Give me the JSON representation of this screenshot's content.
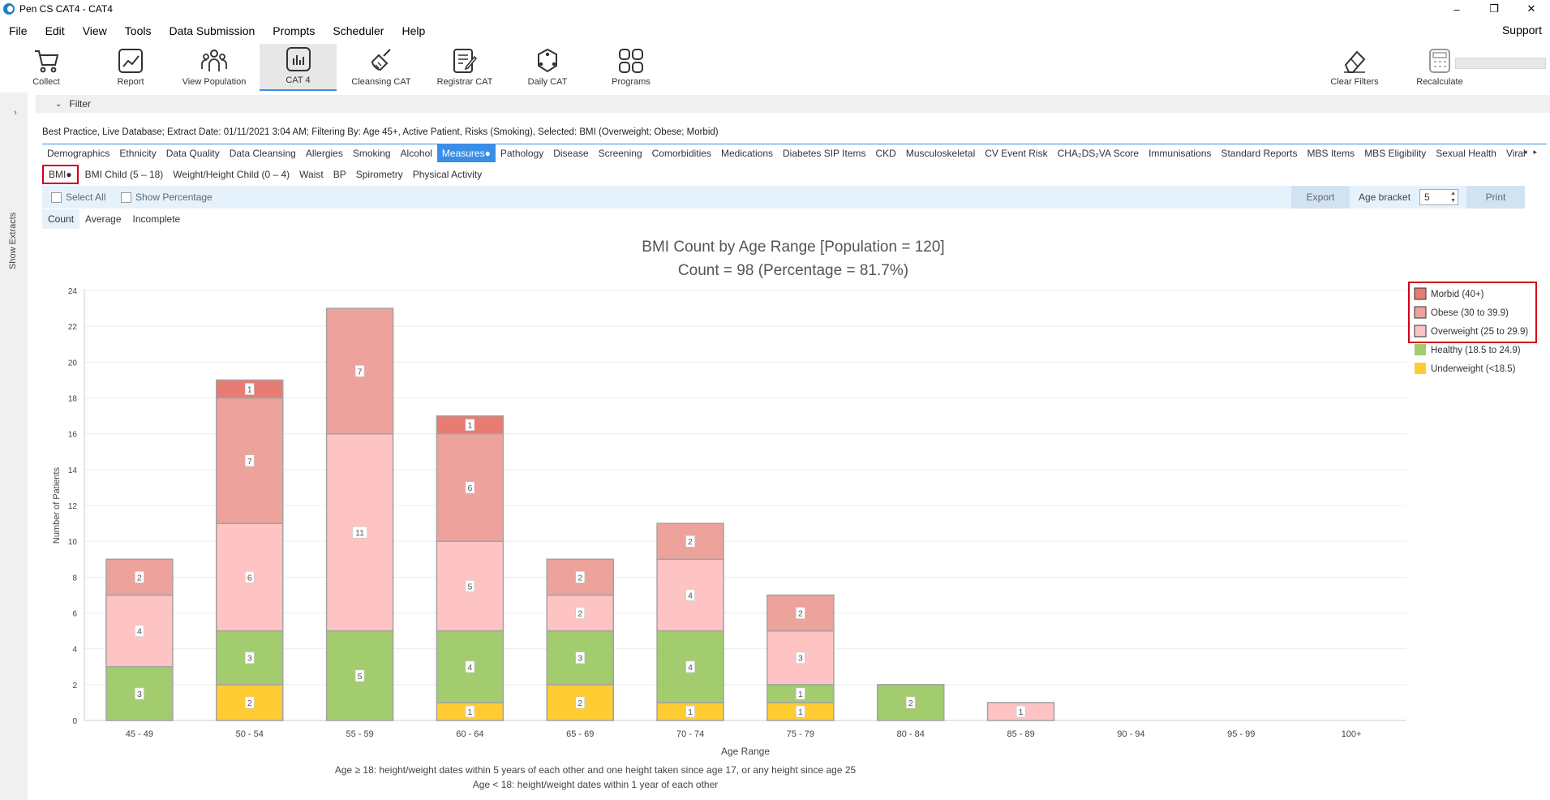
{
  "window": {
    "title": "Pen CS CAT4 - CAT4",
    "controls": [
      "–",
      "❐",
      "✕"
    ]
  },
  "menu": {
    "items": [
      "File",
      "Edit",
      "View",
      "Tools",
      "Data Submission",
      "Prompts",
      "Scheduler",
      "Help"
    ],
    "support": "Support"
  },
  "toolbar": {
    "items": [
      "Collect",
      "Report",
      "View Population",
      "CAT 4",
      "Cleansing CAT",
      "Registrar CAT",
      "Daily CAT",
      "Programs"
    ],
    "right_items": [
      "Clear Filters",
      "Recalculate"
    ],
    "active": "CAT 4"
  },
  "sidebar": {
    "label": "Show Extracts",
    "arrow": "›"
  },
  "filter": {
    "label": "Filter",
    "chevron": "⌵"
  },
  "info_line": "Best Practice, Live Database; Extract Date: 01/11/2021 3:04 AM; Filtering By: Age 45+, Active Patient, Risks (Smoking), Selected: BMI (Overweight; Obese; Morbid)",
  "tabs": [
    "Demographics",
    "Ethnicity",
    "Data Quality",
    "Data Cleansing",
    "Allergies",
    "Smoking",
    "Alcohol",
    "Measures●",
    "Pathology",
    "Disease",
    "Screening",
    "Comorbidities",
    "Medications",
    "Diabetes SIP Items",
    "CKD",
    "Musculoskeletal",
    "CV Event Risk",
    "CHA₂DS₂VA Score",
    "Immunisations",
    "Standard Reports",
    "MBS Items",
    "MBS Eligibility",
    "Sexual Health",
    "Viral H"
  ],
  "active_tab": "Measures●",
  "tab_arrows": "◂▸",
  "subtabs": [
    "BMI●",
    "BMI Child (5 – 18)",
    "Weight/Height Child (0 – 4)",
    "Waist",
    "BP",
    "Spirometry",
    "Physical Activity"
  ],
  "options": {
    "select_all": "Select All",
    "show_percentage": "Show Percentage",
    "export": "Export",
    "age_bracket_label": "Age bracket",
    "age_bracket_value": "5",
    "print": "Print"
  },
  "modes": [
    "Count",
    "Average",
    "Incomplete"
  ],
  "active_mode": "Count",
  "chart_data": {
    "type": "bar",
    "stacked": true,
    "title": "BMI Count by Age Range [Population = 120]",
    "subtitle": "Count = 98  (Percentage = 81.7%)",
    "xlabel": "Age Range",
    "ylabel": "Number of Patients",
    "ylim": [
      0,
      24
    ],
    "yticks": [
      0,
      2,
      4,
      6,
      8,
      10,
      12,
      14,
      16,
      18,
      20,
      22,
      24
    ],
    "grid": true,
    "legend_position": "top-right",
    "categories": [
      "45 - 49",
      "50 - 54",
      "55 - 59",
      "60 - 64",
      "65 - 69",
      "70 - 74",
      "75 - 79",
      "80 - 84",
      "85 - 89",
      "90 - 94",
      "95 - 99",
      "100+"
    ],
    "series": [
      {
        "name": "Underweight (<18.5)",
        "color": "#ffcc33",
        "values": [
          0,
          2,
          0,
          1,
          2,
          1,
          1,
          0,
          0,
          0,
          0,
          0
        ]
      },
      {
        "name": "Healthy (18.5 to 24.9)",
        "color": "#a2cc6e",
        "values": [
          3,
          3,
          5,
          4,
          3,
          4,
          1,
          2,
          0,
          0,
          0,
          0
        ]
      },
      {
        "name": "Overweight (25 to 29.9)",
        "color": "#fec3c3",
        "values": [
          4,
          6,
          11,
          5,
          2,
          4,
          3,
          0,
          1,
          0,
          0,
          0
        ]
      },
      {
        "name": "Obese (30 to 39.9)",
        "color": "#eea29c",
        "values": [
          2,
          7,
          7,
          6,
          2,
          2,
          2,
          0,
          0,
          0,
          0,
          0
        ]
      },
      {
        "name": "Morbid (40+)",
        "color": "#e87b72",
        "values": [
          0,
          1,
          0,
          1,
          0,
          0,
          0,
          0,
          0,
          0,
          0,
          0
        ]
      }
    ],
    "legend_order": [
      "Morbid (40+)",
      "Obese (30 to 39.9)",
      "Overweight (25 to 29.9)",
      "Healthy (18.5 to 24.9)",
      "Underweight (<18.5)"
    ],
    "legend_highlighted": [
      "Morbid (40+)",
      "Obese (30 to 39.9)",
      "Overweight (25 to 29.9)"
    ]
  },
  "footnotes": [
    "Age ≥ 18: height/weight dates within 5 years of each other and one height taken since age 17, or any height since age 25",
    "Age < 18: height/weight dates within 1 year of each other"
  ]
}
